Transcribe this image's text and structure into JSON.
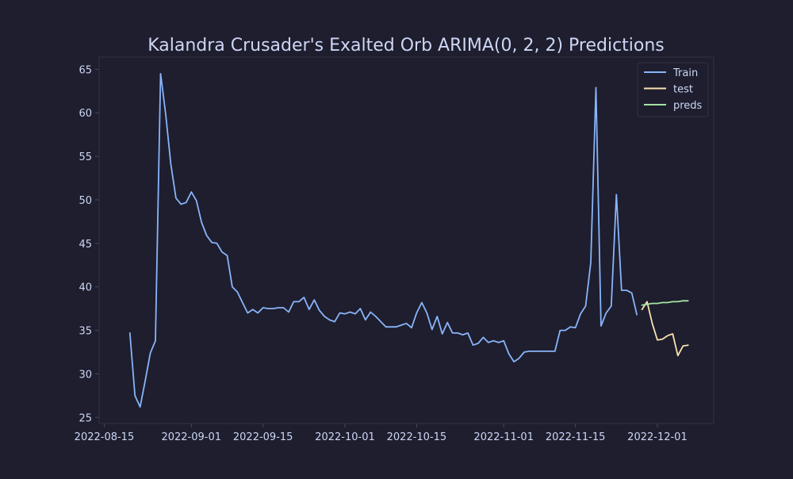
{
  "chart_data": {
    "type": "line",
    "title": "Kalandra Crusader's Exalted Orb ARIMA(0, 2, 2) Predictions",
    "xlabel": "",
    "ylabel": "",
    "x_axis": {
      "type": "date",
      "min": "2022-08-14",
      "max": "2022-12-12",
      "ticks": [
        "2022-08-15",
        "2022-09-01",
        "2022-09-15",
        "2022-10-01",
        "2022-10-15",
        "2022-11-01",
        "2022-11-15",
        "2022-12-01"
      ]
    },
    "y_axis": {
      "min": 24.3,
      "max": 66.4,
      "ticks": [
        25,
        30,
        35,
        40,
        45,
        50,
        55,
        60,
        65
      ]
    },
    "grid": false,
    "legend": {
      "position": "top-right"
    },
    "series": [
      {
        "name": "Train",
        "color": "#89b4fa",
        "points": [
          [
            "2022-08-20",
            34.7
          ],
          [
            "2022-08-21",
            27.5
          ],
          [
            "2022-08-22",
            26.2
          ],
          [
            "2022-08-23",
            29.2
          ],
          [
            "2022-08-24",
            32.4
          ],
          [
            "2022-08-25",
            33.8
          ],
          [
            "2022-08-26",
            64.5
          ],
          [
            "2022-08-27",
            59.8
          ],
          [
            "2022-08-28",
            54.1
          ],
          [
            "2022-08-29",
            50.2
          ],
          [
            "2022-08-30",
            49.5
          ],
          [
            "2022-08-31",
            49.7
          ],
          [
            "2022-09-01",
            50.9
          ],
          [
            "2022-09-02",
            49.9
          ],
          [
            "2022-09-03",
            47.4
          ],
          [
            "2022-09-04",
            45.9
          ],
          [
            "2022-09-05",
            45.1
          ],
          [
            "2022-09-06",
            45.0
          ],
          [
            "2022-09-07",
            44.0
          ],
          [
            "2022-09-08",
            43.6
          ],
          [
            "2022-09-09",
            40.0
          ],
          [
            "2022-09-10",
            39.4
          ],
          [
            "2022-09-11",
            38.2
          ],
          [
            "2022-09-12",
            37.0
          ],
          [
            "2022-09-13",
            37.4
          ],
          [
            "2022-09-14",
            37.0
          ],
          [
            "2022-09-15",
            37.6
          ],
          [
            "2022-09-16",
            37.5
          ],
          [
            "2022-09-17",
            37.5
          ],
          [
            "2022-09-18",
            37.6
          ],
          [
            "2022-09-19",
            37.6
          ],
          [
            "2022-09-20",
            37.1
          ],
          [
            "2022-09-21",
            38.3
          ],
          [
            "2022-09-22",
            38.3
          ],
          [
            "2022-09-23",
            38.8
          ],
          [
            "2022-09-24",
            37.4
          ],
          [
            "2022-09-25",
            38.5
          ],
          [
            "2022-09-26",
            37.3
          ],
          [
            "2022-09-27",
            36.6
          ],
          [
            "2022-09-28",
            36.2
          ],
          [
            "2022-09-29",
            36.0
          ],
          [
            "2022-09-30",
            37.0
          ],
          [
            "2022-10-01",
            36.9
          ],
          [
            "2022-10-02",
            37.1
          ],
          [
            "2022-10-03",
            36.9
          ],
          [
            "2022-10-04",
            37.5
          ],
          [
            "2022-10-05",
            36.2
          ],
          [
            "2022-10-06",
            37.1
          ],
          [
            "2022-10-07",
            36.6
          ],
          [
            "2022-10-08",
            36.0
          ],
          [
            "2022-10-09",
            35.4
          ],
          [
            "2022-10-10",
            35.4
          ],
          [
            "2022-10-11",
            35.4
          ],
          [
            "2022-10-12",
            35.6
          ],
          [
            "2022-10-13",
            35.8
          ],
          [
            "2022-10-14",
            35.3
          ],
          [
            "2022-10-15",
            37.0
          ],
          [
            "2022-10-16",
            38.2
          ],
          [
            "2022-10-17",
            37.0
          ],
          [
            "2022-10-18",
            35.1
          ],
          [
            "2022-10-19",
            36.6
          ],
          [
            "2022-10-20",
            34.6
          ],
          [
            "2022-10-21",
            35.9
          ],
          [
            "2022-10-22",
            34.7
          ],
          [
            "2022-10-23",
            34.7
          ],
          [
            "2022-10-24",
            34.5
          ],
          [
            "2022-10-25",
            34.7
          ],
          [
            "2022-10-26",
            33.3
          ],
          [
            "2022-10-27",
            33.5
          ],
          [
            "2022-10-28",
            34.2
          ],
          [
            "2022-10-29",
            33.6
          ],
          [
            "2022-10-30",
            33.8
          ],
          [
            "2022-10-31",
            33.6
          ],
          [
            "2022-11-01",
            33.8
          ],
          [
            "2022-11-02",
            32.3
          ],
          [
            "2022-11-03",
            31.4
          ],
          [
            "2022-11-04",
            31.8
          ],
          [
            "2022-11-05",
            32.5
          ],
          [
            "2022-11-06",
            32.6
          ],
          [
            "2022-11-07",
            32.6
          ],
          [
            "2022-11-08",
            32.6
          ],
          [
            "2022-11-09",
            32.6
          ],
          [
            "2022-11-10",
            32.6
          ],
          [
            "2022-11-11",
            32.6
          ],
          [
            "2022-11-12",
            35.0
          ],
          [
            "2022-11-13",
            35.0
          ],
          [
            "2022-11-14",
            35.4
          ],
          [
            "2022-11-15",
            35.3
          ],
          [
            "2022-11-16",
            36.9
          ],
          [
            "2022-11-17",
            37.8
          ],
          [
            "2022-11-18",
            42.8
          ],
          [
            "2022-11-19",
            62.9
          ],
          [
            "2022-11-20",
            35.5
          ],
          [
            "2022-11-21",
            37.0
          ],
          [
            "2022-11-22",
            37.8
          ],
          [
            "2022-11-23",
            50.6
          ],
          [
            "2022-11-24",
            39.6
          ],
          [
            "2022-11-25",
            39.6
          ],
          [
            "2022-11-26",
            39.3
          ],
          [
            "2022-11-27",
            36.8
          ]
        ]
      },
      {
        "name": "test",
        "color": "#f9e2af",
        "points": [
          [
            "2022-11-28",
            37.4
          ],
          [
            "2022-11-29",
            38.3
          ],
          [
            "2022-11-30",
            35.8
          ],
          [
            "2022-12-01",
            33.9
          ],
          [
            "2022-12-02",
            34.0
          ],
          [
            "2022-12-03",
            34.4
          ],
          [
            "2022-12-04",
            34.6
          ],
          [
            "2022-12-05",
            32.1
          ],
          [
            "2022-12-06",
            33.2
          ],
          [
            "2022-12-07",
            33.3
          ]
        ]
      },
      {
        "name": "preds",
        "color": "#a6e3a1",
        "points": [
          [
            "2022-11-28",
            37.9
          ],
          [
            "2022-11-29",
            38.0
          ],
          [
            "2022-11-30",
            38.1
          ],
          [
            "2022-12-01",
            38.1
          ],
          [
            "2022-12-02",
            38.2
          ],
          [
            "2022-12-03",
            38.2
          ],
          [
            "2022-12-04",
            38.3
          ],
          [
            "2022-12-05",
            38.3
          ],
          [
            "2022-12-06",
            38.4
          ],
          [
            "2022-12-07",
            38.4
          ]
        ]
      }
    ]
  }
}
